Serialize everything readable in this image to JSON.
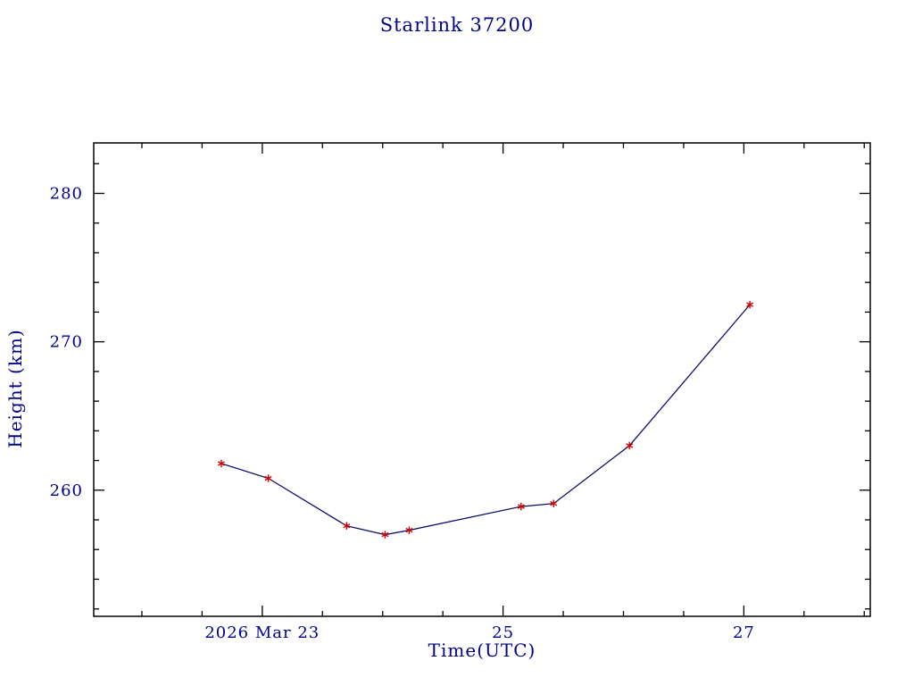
{
  "page": {
    "background": "#ffffff"
  },
  "colors": {
    "text": "#00008b",
    "axis": "#000000",
    "line": "#000066",
    "marker": "#cc0000",
    "background": "#ffffff"
  },
  "chart_data": {
    "type": "line",
    "title": "Starlink 37200",
    "xlabel": "Time(UTC)",
    "ylabel": "Height (km)",
    "x_unit": "day of March 2026 (UTC)",
    "xlim": [
      21.6,
      28.05
    ],
    "ylim": [
      251.5,
      283.4
    ],
    "grid": false,
    "legend": false,
    "x_major_ticks": [
      {
        "value": 23,
        "label": "2026 Mar 23"
      },
      {
        "value": 25,
        "label": "25"
      },
      {
        "value": 27,
        "label": "27"
      }
    ],
    "x_minor_tick_step": 0.5,
    "y_major_ticks": [
      {
        "value": 260,
        "label": "260"
      },
      {
        "value": 270,
        "label": "270"
      },
      {
        "value": 280,
        "label": "280"
      }
    ],
    "y_minor_tick_step": 2,
    "series": [
      {
        "name": "height",
        "line_color": "#000066",
        "marker": "asterisk",
        "marker_color": "#cc0000",
        "points": [
          {
            "x": 22.66,
            "y": 261.8
          },
          {
            "x": 23.05,
            "y": 260.8
          },
          {
            "x": 23.7,
            "y": 257.6
          },
          {
            "x": 24.02,
            "y": 257.0
          },
          {
            "x": 24.22,
            "y": 257.3
          },
          {
            "x": 25.15,
            "y": 258.9
          },
          {
            "x": 25.42,
            "y": 259.1
          },
          {
            "x": 26.05,
            "y": 263.0
          },
          {
            "x": 27.05,
            "y": 272.5
          }
        ]
      }
    ]
  }
}
